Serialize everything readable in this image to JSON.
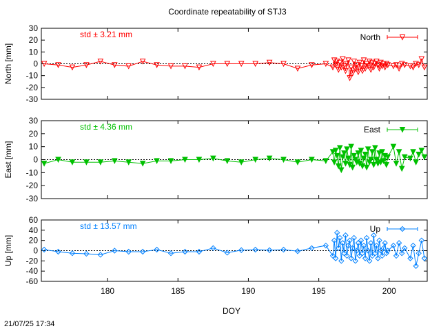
{
  "title": "Coordinate repeatability of STJ3",
  "timestamp": "21/07/25 17:34",
  "xlabel": "DOY",
  "x_ticks": [
    180,
    185,
    190,
    195,
    200
  ],
  "x_range": [
    175.3,
    202.7
  ],
  "chart_data": [
    {
      "type": "line",
      "name": "North",
      "ylabel": "North [mm]",
      "ylim": [
        -30,
        30
      ],
      "y_ticks": [
        30,
        20,
        10,
        0,
        -10,
        -20,
        -30
      ],
      "std_label": "std ± 3.21 mm",
      "color": "#ff0000",
      "marker": "triangle-down-open",
      "legend": "top-right",
      "zero_line": true,
      "x": [
        175.5,
        176.5,
        177.5,
        178.5,
        179.5,
        180.5,
        181.5,
        182.5,
        183.5,
        184.5,
        185.5,
        186.5,
        187.5,
        188.5,
        189.5,
        190.5,
        191.5,
        192.5,
        193.5,
        194.5,
        195.5,
        196.0,
        196.1,
        196.2,
        196.3,
        196.4,
        196.5,
        196.6,
        196.7,
        196.8,
        196.9,
        197.0,
        197.1,
        197.2,
        197.3,
        197.4,
        197.5,
        197.6,
        197.7,
        197.8,
        197.9,
        198.0,
        198.1,
        198.2,
        198.3,
        198.4,
        198.5,
        198.6,
        198.7,
        198.8,
        198.9,
        199.0,
        199.1,
        199.2,
        199.3,
        199.4,
        199.5,
        199.6,
        199.7,
        199.8,
        199.9,
        200.3,
        200.5,
        200.7,
        200.9,
        201.1,
        201.5,
        201.7,
        201.9,
        202.1,
        202.3,
        202.5
      ],
      "y": [
        0,
        -1,
        -3,
        -1,
        2,
        -1,
        -2,
        2,
        -1,
        -2,
        -2,
        -3,
        0,
        0,
        0,
        0,
        1,
        0,
        -4,
        -1,
        0,
        -3,
        3,
        -1,
        2,
        -5,
        1,
        -3,
        4,
        -2,
        -6,
        0,
        3,
        -12,
        -3,
        -8,
        2,
        -4,
        -1,
        -7,
        1,
        -2,
        -6,
        3,
        -4,
        0,
        -2,
        2,
        -5,
        1,
        -3,
        0,
        2,
        -1,
        -4,
        1,
        -2,
        0,
        -3,
        0,
        -1,
        -2,
        -1,
        -4,
        0,
        -1,
        -2,
        -3,
        0,
        -1,
        4,
        -3
      ]
    },
    {
      "type": "line",
      "name": "East",
      "ylabel": "East [mm]",
      "ylim": [
        -30,
        30
      ],
      "y_ticks": [
        30,
        20,
        10,
        0,
        -10,
        -20,
        -30
      ],
      "std_label": "std ± 4.36 mm",
      "color": "#00c000",
      "marker": "triangle-down-filled",
      "legend": "top-right",
      "zero_line": true,
      "x": [
        175.5,
        176.5,
        177.5,
        178.5,
        179.5,
        180.5,
        181.5,
        182.5,
        183.5,
        184.5,
        185.5,
        186.5,
        187.5,
        188.5,
        189.5,
        190.5,
        191.5,
        192.5,
        193.5,
        194.5,
        195.5,
        196.0,
        196.1,
        196.2,
        196.3,
        196.4,
        196.5,
        196.6,
        196.7,
        196.8,
        196.9,
        197.0,
        197.1,
        197.2,
        197.3,
        197.4,
        197.5,
        197.6,
        197.7,
        197.8,
        197.9,
        198.0,
        198.1,
        198.2,
        198.3,
        198.4,
        198.5,
        198.6,
        198.7,
        198.8,
        198.9,
        199.0,
        199.1,
        199.2,
        199.3,
        199.4,
        199.5,
        199.6,
        199.7,
        199.8,
        199.9,
        200.3,
        200.5,
        200.7,
        200.9,
        201.1,
        201.5,
        201.7,
        201.9,
        202.1,
        202.3,
        202.5
      ],
      "y": [
        -3,
        0,
        -2,
        -2,
        -2,
        -1,
        -2,
        -3,
        -1,
        -1,
        0,
        0,
        1,
        -1,
        -2,
        0,
        1,
        0,
        -2,
        0,
        -1,
        6,
        -2,
        7,
        3,
        -5,
        9,
        -8,
        2,
        5,
        -3,
        8,
        1,
        -4,
        10,
        -6,
        3,
        0,
        -2,
        5,
        -3,
        7,
        -5,
        1,
        4,
        -6,
        8,
        -2,
        0,
        6,
        -4,
        9,
        0,
        -3,
        5,
        -2,
        6,
        -1,
        3,
        -4,
        2,
        10,
        -3,
        6,
        -7,
        2,
        1,
        6,
        -2,
        4,
        7,
        2
      ]
    },
    {
      "type": "line",
      "name": "Up",
      "ylabel": "Up [mm]",
      "ylim": [
        -60,
        60
      ],
      "y_ticks": [
        60,
        40,
        20,
        0,
        -20,
        -40,
        -60
      ],
      "std_label": "std ± 13.57 mm",
      "color": "#0080ff",
      "marker": "diamond-open",
      "legend": "top-right",
      "zero_line": true,
      "x": [
        175.5,
        176.5,
        177.5,
        178.5,
        179.5,
        180.5,
        181.5,
        182.5,
        183.5,
        184.5,
        185.5,
        186.5,
        187.5,
        188.5,
        189.5,
        190.5,
        191.5,
        192.5,
        193.5,
        194.5,
        195.5,
        196.0,
        196.1,
        196.2,
        196.3,
        196.4,
        196.5,
        196.6,
        196.7,
        196.8,
        196.9,
        197.0,
        197.1,
        197.2,
        197.3,
        197.4,
        197.5,
        197.6,
        197.7,
        197.8,
        197.9,
        198.0,
        198.1,
        198.2,
        198.3,
        198.4,
        198.5,
        198.6,
        198.7,
        198.8,
        198.9,
        199.0,
        199.1,
        199.2,
        199.3,
        199.4,
        199.5,
        199.6,
        199.7,
        199.8,
        199.9,
        200.3,
        200.5,
        200.7,
        200.9,
        201.1,
        201.5,
        201.7,
        201.9,
        202.1,
        202.3,
        202.5
      ],
      "y": [
        2,
        -2,
        -5,
        -6,
        -8,
        0,
        -2,
        -2,
        2,
        -5,
        -2,
        -2,
        5,
        -4,
        1,
        2,
        1,
        2,
        -1,
        5,
        10,
        -10,
        20,
        -15,
        35,
        5,
        25,
        -20,
        15,
        -5,
        30,
        -10,
        10,
        20,
        -15,
        5,
        25,
        -20,
        0,
        15,
        -10,
        20,
        -5,
        10,
        -15,
        25,
        0,
        -20,
        15,
        -10,
        30,
        -5,
        10,
        -15,
        20,
        0,
        -10,
        5,
        15,
        -5,
        0,
        10,
        -10,
        15,
        -5,
        5,
        -15,
        10,
        -30,
        -5,
        20,
        -15
      ]
    }
  ]
}
